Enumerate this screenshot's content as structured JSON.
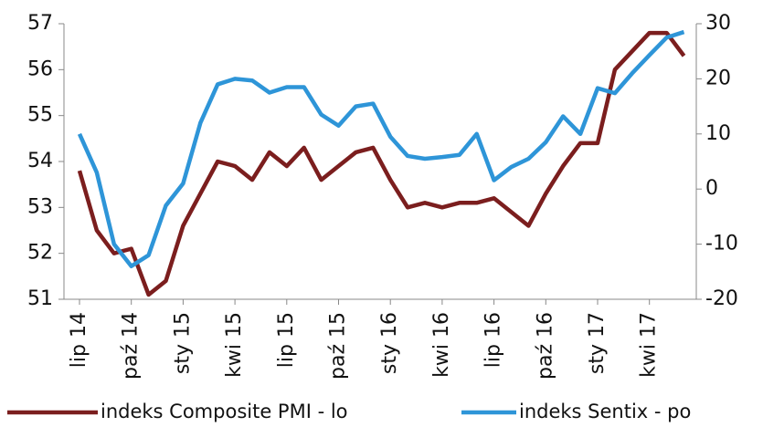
{
  "chart_data": {
    "type": "line",
    "categories": [
      "lip 14",
      null,
      null,
      "paź 14",
      null,
      null,
      "sty 15",
      null,
      null,
      "kwi 15",
      null,
      null,
      "lip 15",
      null,
      null,
      "paź 15",
      null,
      null,
      "sty 16",
      null,
      null,
      "kwi 16",
      null,
      null,
      "lip 16",
      null,
      null,
      "paź 16",
      null,
      null,
      "sty 17",
      null,
      null,
      "kwi 17",
      null,
      null
    ],
    "series": [
      {
        "name": "indeks Composite PMI - lo",
        "color": "#7b1e1e",
        "axis": "y",
        "values": [
          53.8,
          52.5,
          52.0,
          52.1,
          51.1,
          51.4,
          52.6,
          53.3,
          54.0,
          53.9,
          53.6,
          54.2,
          53.9,
          54.3,
          53.6,
          53.9,
          54.2,
          54.3,
          53.6,
          53.0,
          53.1,
          53.0,
          53.1,
          53.1,
          53.2,
          52.9,
          52.6,
          53.3,
          53.9,
          54.4,
          54.4,
          56.0,
          56.4,
          56.8,
          56.8,
          56.3
        ]
      },
      {
        "name": "indeks Sentix - po",
        "color": "#2e95d8",
        "axis": "y2",
        "values": [
          10,
          3,
          -10,
          -14,
          -12,
          -3,
          1,
          12,
          19,
          20,
          19.7,
          17.5,
          18.5,
          18.5,
          13.5,
          11.5,
          15,
          15.5,
          9.5,
          6,
          5.5,
          5.8,
          6.2,
          10,
          1.6,
          4,
          5.5,
          8.5,
          13.2,
          10,
          18.3,
          17.4,
          21,
          24.3,
          27.5,
          28.5
        ]
      }
    ],
    "ylim": [
      51,
      57
    ],
    "yticks": [
      51,
      52,
      53,
      54,
      55,
      56,
      57
    ],
    "y2lim": [
      -20,
      30
    ],
    "y2ticks": [
      -20,
      -10,
      0,
      10,
      20,
      30
    ],
    "legend": "bottom"
  }
}
